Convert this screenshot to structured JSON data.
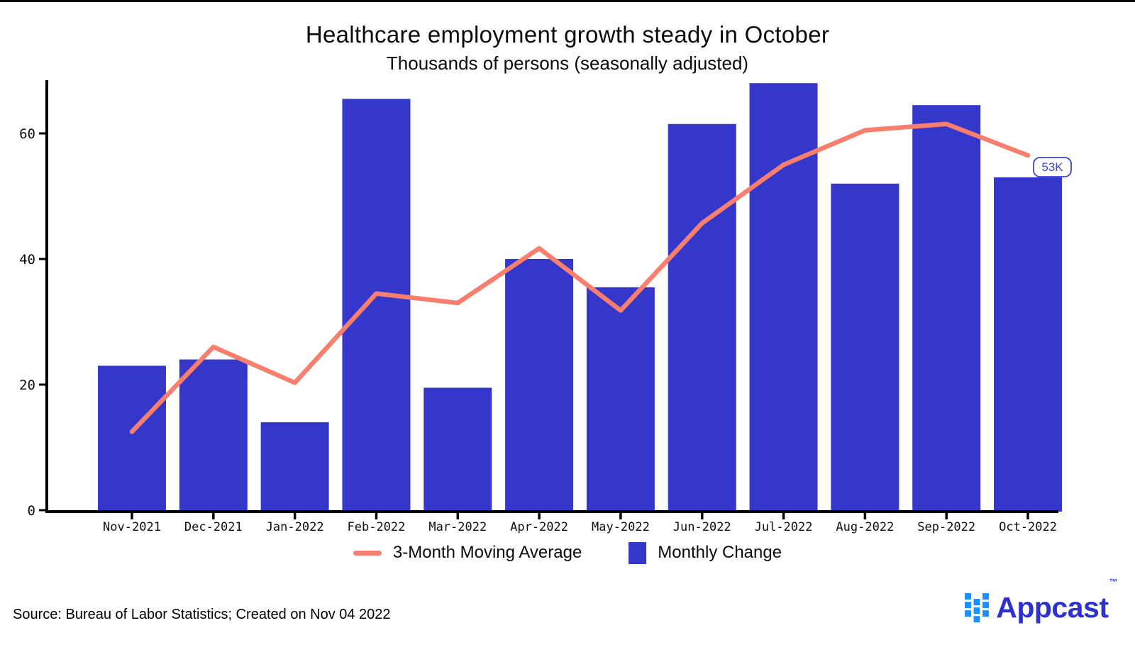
{
  "header": {
    "title": "Healthcare employment growth steady in October",
    "subtitle": "Thousands of persons (seasonally adjusted)"
  },
  "chart_data": {
    "type": "bar",
    "categories": [
      "Nov-2021",
      "Dec-2021",
      "Jan-2022",
      "Feb-2022",
      "Mar-2022",
      "Apr-2022",
      "May-2022",
      "Jun-2022",
      "Jul-2022",
      "Aug-2022",
      "Sep-2022",
      "Oct-2022"
    ],
    "series": [
      {
        "name": "Monthly Change",
        "type": "bar",
        "color": "#3437C9",
        "values": [
          23,
          24,
          14,
          65.5,
          19.5,
          40,
          35.5,
          61.5,
          68,
          52,
          64.5,
          53
        ]
      },
      {
        "name": "3-Month Moving Average",
        "type": "line",
        "color": "#F87E6E",
        "values": [
          12.5,
          26,
          20.3,
          34.5,
          33,
          41.7,
          31.8,
          45.7,
          55,
          60.5,
          61.5,
          56.5
        ]
      }
    ],
    "ylabel": "",
    "xlabel": "",
    "yticks": [
      0,
      20,
      40,
      60
    ],
    "ylim": [
      0,
      68.5
    ],
    "grid": false,
    "legend_position": "bottom",
    "axis_color": "#000000",
    "annotation": {
      "text": "53K",
      "category": "Oct-2022",
      "color": "#3946D3"
    }
  },
  "footer": {
    "source": "Source: Bureau of Labor Statistics; Created on Nov 04 2022",
    "brand": {
      "name": "Appcast",
      "trademark": "™",
      "icon": "appcast-squares-icon",
      "icon_color": "#1E8FFE",
      "text_color": "#2D31D2"
    }
  }
}
